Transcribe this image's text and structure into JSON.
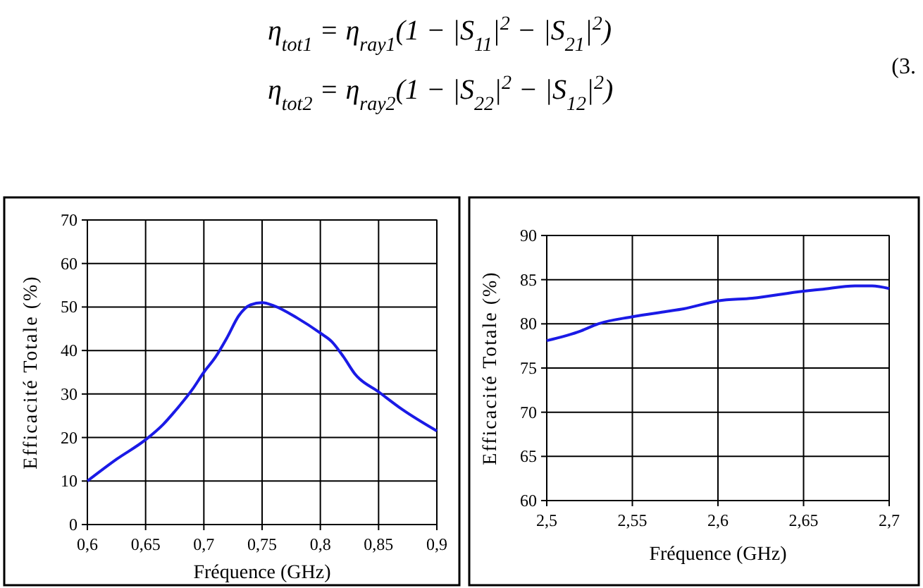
{
  "chart_data": [
    {
      "type": "line",
      "annotations": [
        "η$_{tot1}$ = η$_{ray1}$(1 − |S$_{11}$|$^{2}$ − |S$_{21}$|$^{2}$)",
        "η$_{tot2}$ = η$_{ray2}$(1 − |S$_{22}$|$^{2}$ − |S$_{12}$|$^{2}$)",
        "(3."
      ],
      "xlabel": "Fréquence (GHz)",
      "ylabel": "Efficacité Totale (%)",
      "xlim": [
        0.6,
        0.9
      ],
      "ylim": [
        0,
        70
      ],
      "xticks": [
        {
          "value": 0.6,
          "label": "0,6"
        },
        {
          "value": 0.65,
          "label": "0,65"
        },
        {
          "value": 0.7,
          "label": "0,7"
        },
        {
          "value": 0.75,
          "label": "0,75"
        },
        {
          "value": 0.8,
          "label": "0,8"
        },
        {
          "value": 0.85,
          "label": "0,85"
        },
        {
          "value": 0.9,
          "label": "0,9"
        }
      ],
      "yticks": [
        0,
        10,
        20,
        30,
        40,
        50,
        60,
        70
      ],
      "grid": true,
      "series": [
        {
          "color": "#1a1ae6",
          "x": [
            0.6,
            0.625,
            0.65,
            0.665,
            0.675,
            0.69,
            0.7,
            0.71,
            0.72,
            0.73,
            0.74,
            0.75,
            0.76,
            0.78,
            0.8,
            0.81,
            0.82,
            0.83,
            0.85,
            0.87,
            0.9
          ],
          "values": [
            10,
            15,
            19.5,
            23,
            26,
            31,
            35,
            38.5,
            43,
            48,
            50.5,
            51,
            50.3,
            47.5,
            44,
            42,
            38.5,
            34.5,
            30.5,
            26.5,
            21.5
          ]
        }
      ]
    },
    {
      "type": "line",
      "xlabel": "Fréquence (GHz)",
      "ylabel": "Efficacité Totale (%)",
      "xlim": [
        2.5,
        2.7
      ],
      "ylim": [
        60,
        90
      ],
      "xticks": [
        {
          "value": 2.5,
          "label": "2,5"
        },
        {
          "value": 2.55,
          "label": "2,55"
        },
        {
          "value": 2.6,
          "label": "2,6"
        },
        {
          "value": 2.65,
          "label": "2,65"
        },
        {
          "value": 2.7,
          "label": "2,7"
        }
      ],
      "yticks": [
        60,
        65,
        70,
        75,
        80,
        85,
        90
      ],
      "grid": true,
      "series": [
        {
          "color": "#1a1ae6",
          "x": [
            2.5,
            2.52,
            2.53,
            2.55,
            2.57,
            2.58,
            2.6,
            2.62,
            2.65,
            2.66,
            2.68,
            2.69,
            2.7
          ],
          "values": [
            78.1,
            79.2,
            80,
            80.8,
            81.4,
            81.7,
            82.6,
            82.9,
            83.7,
            83.9,
            84.3,
            84.3,
            84
          ]
        }
      ]
    }
  ]
}
